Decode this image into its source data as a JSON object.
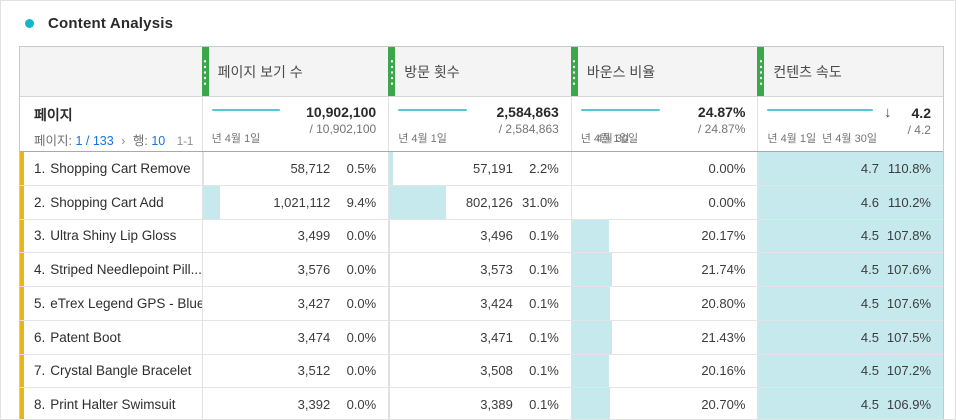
{
  "title": "Content Analysis",
  "colors": {
    "accent_teal": "#12b5cb",
    "header_grip_green": "#3ba64c",
    "bar_cyan": "#c6e9ed",
    "row_stripe_yellow": "#e9b41c",
    "link_blue": "#1473e6",
    "sparkline_teal": "#57c7d4"
  },
  "table": {
    "headers": [
      {
        "label": "페이지 보기 수"
      },
      {
        "label": "방문 횟수"
      },
      {
        "label": "바운스 비율"
      },
      {
        "label": "컨텐츠 속도"
      }
    ],
    "summary": {
      "dimension": "페이지",
      "pager": {
        "page_label": "페이지:",
        "page_value": "1 / 133",
        "chevron": "›",
        "rows_label": "행:",
        "rows_value": "10",
        "range": "1-1"
      },
      "metrics": [
        {
          "total": "10,902,100",
          "fraction": "/ 10,902,100",
          "date_start": "년 4월 1일",
          "date_end": ""
        },
        {
          "total": "2,584,863",
          "fraction": "/ 2,584,863",
          "date_start": "년 4월 1일",
          "date_end": ""
        },
        {
          "total": "24.87%",
          "fraction": "/ 24.87%",
          "date_start": "년 4월 1일",
          "date_end": "4월 30일"
        },
        {
          "total": "4.2",
          "fraction": "/ 4.2",
          "date_start": "년 4월 1일",
          "date_end": "년 4월 30일",
          "sort_arrow": "↓"
        }
      ]
    },
    "rows": [
      {
        "rank": "1.",
        "name": "Shopping Cart Remove",
        "pv": {
          "value": "58,712",
          "pct": "0.5%",
          "bar": 0.5
        },
        "visits": {
          "value": "57,191",
          "pct": "2.2%",
          "bar": 2.2
        },
        "bounce": {
          "value": "0.00%",
          "bar": 0
        },
        "velocity": {
          "value": "4.7",
          "pct": "110.8%",
          "bar": 110.8
        }
      },
      {
        "rank": "2.",
        "name": "Shopping Cart Add",
        "pv": {
          "value": "1,021,112",
          "pct": "9.4%",
          "bar": 9.4
        },
        "visits": {
          "value": "802,126",
          "pct": "31.0%",
          "bar": 31.0
        },
        "bounce": {
          "value": "0.00%",
          "bar": 0
        },
        "velocity": {
          "value": "4.6",
          "pct": "110.2%",
          "bar": 110.2
        }
      },
      {
        "rank": "3.",
        "name": "Ultra Shiny Lip Gloss",
        "pv": {
          "value": "3,499",
          "pct": "0.0%",
          "bar": 0
        },
        "visits": {
          "value": "3,496",
          "pct": "0.1%",
          "bar": 0.1
        },
        "bounce": {
          "value": "20.17%",
          "bar": 20.17
        },
        "velocity": {
          "value": "4.5",
          "pct": "107.8%",
          "bar": 107.8
        }
      },
      {
        "rank": "4.",
        "name": "Striped Needlepoint Pill...",
        "pv": {
          "value": "3,576",
          "pct": "0.0%",
          "bar": 0
        },
        "visits": {
          "value": "3,573",
          "pct": "0.1%",
          "bar": 0.1
        },
        "bounce": {
          "value": "21.74%",
          "bar": 21.74
        },
        "velocity": {
          "value": "4.5",
          "pct": "107.6%",
          "bar": 107.6
        }
      },
      {
        "rank": "5.",
        "name": "eTrex Legend GPS - Blue",
        "pv": {
          "value": "3,427",
          "pct": "0.0%",
          "bar": 0
        },
        "visits": {
          "value": "3,424",
          "pct": "0.1%",
          "bar": 0.1
        },
        "bounce": {
          "value": "20.80%",
          "bar": 20.8
        },
        "velocity": {
          "value": "4.5",
          "pct": "107.6%",
          "bar": 107.6
        }
      },
      {
        "rank": "6.",
        "name": "Patent Boot",
        "pv": {
          "value": "3,474",
          "pct": "0.0%",
          "bar": 0
        },
        "visits": {
          "value": "3,471",
          "pct": "0.1%",
          "bar": 0.1
        },
        "bounce": {
          "value": "21.43%",
          "bar": 21.43
        },
        "velocity": {
          "value": "4.5",
          "pct": "107.5%",
          "bar": 107.5
        }
      },
      {
        "rank": "7.",
        "name": "Crystal Bangle Bracelet",
        "pv": {
          "value": "3,512",
          "pct": "0.0%",
          "bar": 0
        },
        "visits": {
          "value": "3,508",
          "pct": "0.1%",
          "bar": 0.1
        },
        "bounce": {
          "value": "20.16%",
          "bar": 20.16
        },
        "velocity": {
          "value": "4.5",
          "pct": "107.2%",
          "bar": 107.2
        }
      },
      {
        "rank": "8.",
        "name": "Print Halter Swimsuit",
        "pv": {
          "value": "3,392",
          "pct": "0.0%",
          "bar": 0
        },
        "visits": {
          "value": "3,389",
          "pct": "0.1%",
          "bar": 0.1
        },
        "bounce": {
          "value": "20.70%",
          "bar": 20.7
        },
        "velocity": {
          "value": "4.5",
          "pct": "106.9%",
          "bar": 106.9
        }
      }
    ]
  }
}
